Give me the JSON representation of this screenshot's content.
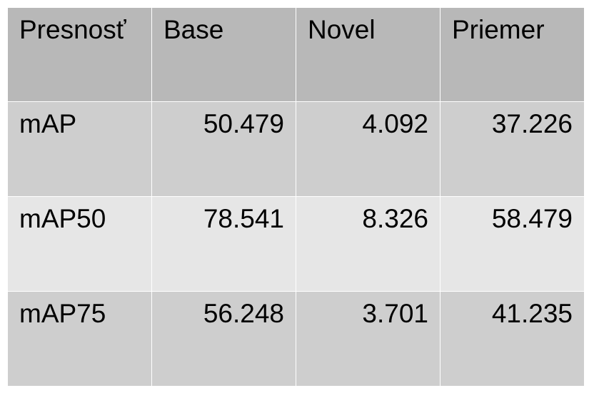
{
  "table": {
    "headers": [
      "Presnosť",
      "Base",
      "Novel",
      "Priemer"
    ],
    "rows": [
      {
        "metric": "mAP",
        "base": "50.479",
        "novel": "4.092",
        "average": "37.226"
      },
      {
        "metric": "mAP50",
        "base": "78.541",
        "novel": "8.326",
        "average": "58.479"
      },
      {
        "metric": "mAP75",
        "base": "56.248",
        "novel": "3.701",
        "average": "41.235"
      }
    ]
  },
  "colors": {
    "header_bg": "#b8b8b8",
    "row_dark_bg": "#cecece",
    "row_light_bg": "#e6e6e6",
    "border": "#ffffff"
  }
}
